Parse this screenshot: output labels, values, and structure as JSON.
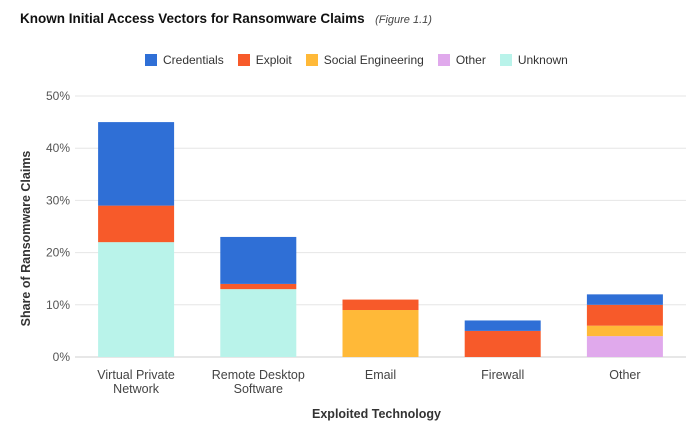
{
  "title": "Known Initial Access Vectors for Ransomware Claims",
  "subtitle": "(Figure 1.1)",
  "colors": {
    "Credentials": "#2f6fd6",
    "Exploit": "#f75a2a",
    "Social Engineering": "#ffb938",
    "Other": "#e0a9ec",
    "Unknown": "#b9f3ea"
  },
  "chart_data": {
    "type": "bar",
    "stacked": true,
    "title": "Known Initial Access Vectors for Ransomware Claims",
    "xlabel": "Exploited Technology",
    "ylabel": "Share of Ransomware Claims",
    "ylim": [
      0,
      50
    ],
    "yticks": [
      "0%",
      "10%",
      "20%",
      "30%",
      "40%",
      "50%"
    ],
    "grid": true,
    "legend_position": "top",
    "categories": [
      [
        "Virtual Private",
        "Network"
      ],
      [
        "Remote Desktop",
        "Software"
      ],
      [
        "Email"
      ],
      [
        "Firewall"
      ],
      [
        "Other"
      ]
    ],
    "series": [
      {
        "name": "Unknown",
        "values": [
          22,
          13,
          0,
          0,
          0
        ]
      },
      {
        "name": "Other",
        "values": [
          0,
          0,
          0,
          0,
          4
        ]
      },
      {
        "name": "Social Engineering",
        "values": [
          0,
          0,
          9,
          0,
          2
        ]
      },
      {
        "name": "Exploit",
        "values": [
          7,
          1,
          2,
          5,
          4
        ]
      },
      {
        "name": "Credentials",
        "values": [
          16,
          9,
          0,
          2,
          2
        ]
      }
    ],
    "legend_order": [
      "Credentials",
      "Exploit",
      "Social Engineering",
      "Other",
      "Unknown"
    ]
  }
}
